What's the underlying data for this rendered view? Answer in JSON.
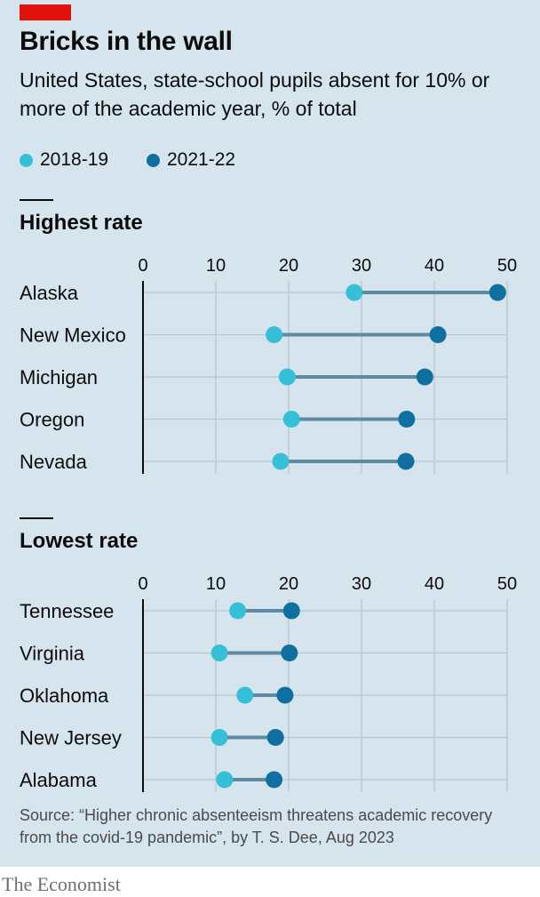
{
  "title": "Bricks in the wall",
  "subtitle": "United States, state-school pupils absent for 10% or more of the academic year, % of total",
  "legend": [
    {
      "label": "2018-19",
      "color": "#36c0d8"
    },
    {
      "label": "2021-22",
      "color": "#0e6fa0"
    }
  ],
  "colors": {
    "panel": "#d6e4ed",
    "red_tag": "#e3120b",
    "connector": "#5e89a2",
    "gridline": "#b8c6cf",
    "axis": "#0c0c0c"
  },
  "chart_data": [
    {
      "type": "dumbbell",
      "section_title": "Highest rate",
      "xlim": [
        0,
        50
      ],
      "ticks": [
        0,
        10,
        20,
        30,
        40,
        50
      ],
      "categories": [
        "Alaska",
        "New Mexico",
        "Michigan",
        "Oregon",
        "Nevada"
      ],
      "series": [
        {
          "name": "2018-19",
          "values": [
            29,
            18,
            19.8,
            20.4,
            18.9
          ]
        },
        {
          "name": "2021-22",
          "values": [
            48.7,
            40.5,
            38.7,
            36.2,
            36.1
          ]
        }
      ]
    },
    {
      "type": "dumbbell",
      "section_title": "Lowest rate",
      "xlim": [
        0,
        50
      ],
      "ticks": [
        0,
        10,
        20,
        30,
        40,
        50
      ],
      "categories": [
        "Tennessee",
        "Virginia",
        "Oklahoma",
        "New Jersey",
        "Alabama"
      ],
      "series": [
        {
          "name": "2018-19",
          "values": [
            13,
            10.5,
            14,
            10.5,
            11.2
          ]
        },
        {
          "name": "2021-22",
          "values": [
            20.4,
            20.1,
            19.5,
            18.2,
            18
          ]
        }
      ]
    }
  ],
  "source": "Source: “Higher chronic absenteeism threatens academic recovery from the covid-19 pandemic”, by T. S. Dee, Aug 2023",
  "brand": "The Economist"
}
